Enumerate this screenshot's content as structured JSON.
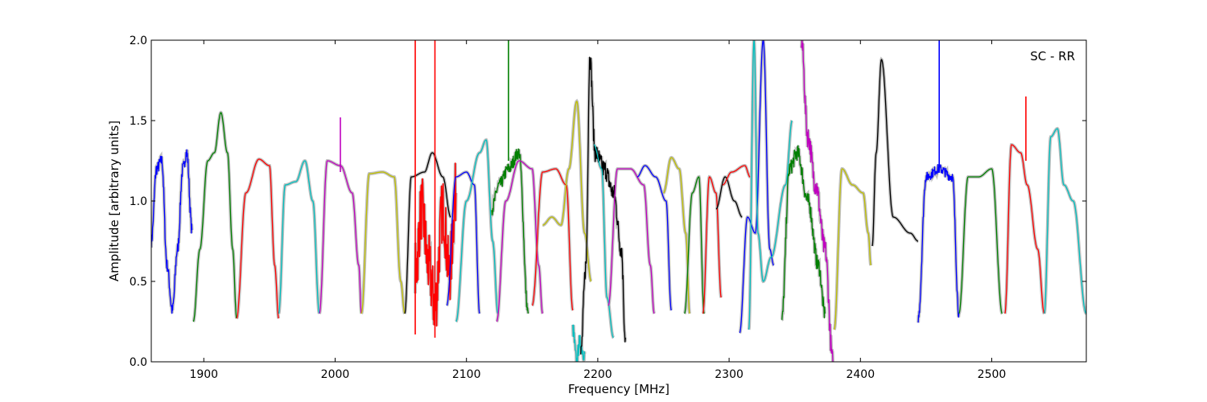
{
  "chart_data": {
    "type": "line",
    "annotation": "SC - RR",
    "xlabel": "Frequency [MHz]",
    "ylabel": "Amplitude [arbitrary units]",
    "xlim": [
      1860,
      2572
    ],
    "ylim": [
      0.0,
      2.0
    ],
    "xticks": [
      1900,
      2000,
      2100,
      2200,
      2300,
      2400,
      2500
    ],
    "yticks": [
      0.0,
      0.5,
      1.0,
      1.5,
      2.0
    ],
    "xtick_labels": [
      "1900",
      "2000",
      "2100",
      "2200",
      "2300",
      "2400",
      "2500"
    ],
    "ytick_labels": [
      "0.0",
      "0.5",
      "1.0",
      "1.5",
      "2.0"
    ],
    "grid": false,
    "colors": {
      "background": "#c0c0c0",
      "blue": "#0000ff",
      "green": "#007f00",
      "red": "#ff0000",
      "cyan": "#00bfbf",
      "magenta": "#bf00bf",
      "olive": "#bfbf00",
      "black": "#000000"
    },
    "series": [
      {
        "color": "blue",
        "x": [
          1860,
          1864,
          1868,
          1872,
          1876,
          1880,
          1884,
          1887,
          1891
        ],
        "y": [
          0.75,
          1.2,
          1.25,
          0.6,
          0.32,
          0.7,
          1.2,
          1.3,
          0.82
        ],
        "noise": 0.04
      },
      {
        "color": "green",
        "x": [
          1892,
          1897,
          1903,
          1908,
          1913,
          1918,
          1922,
          1925
        ],
        "y": [
          0.25,
          0.7,
          1.25,
          1.3,
          1.55,
          1.3,
          0.7,
          0.27
        ],
        "noise": 0.0
      },
      {
        "color": "red",
        "x": [
          1925,
          1932,
          1942,
          1950,
          1954,
          1957
        ],
        "y": [
          0.27,
          1.05,
          1.26,
          1.22,
          0.6,
          0.27
        ],
        "noise": 0.0
      },
      {
        "color": "cyan",
        "x": [
          1957,
          1962,
          1970,
          1977,
          1983,
          1988
        ],
        "y": [
          0.3,
          1.1,
          1.12,
          1.25,
          1.0,
          0.3
        ],
        "noise": 0.0
      },
      {
        "color": "magenta",
        "x": [
          1988,
          1994,
          2004,
          2013,
          2018,
          2020
        ],
        "y": [
          0.3,
          1.25,
          1.22,
          1.05,
          0.6,
          0.3
        ],
        "noise": 0.0
      },
      {
        "color": "olive",
        "x": [
          2020,
          2026,
          2036,
          2045,
          2050,
          2053
        ],
        "y": [
          0.3,
          1.17,
          1.18,
          1.15,
          0.5,
          0.3
        ],
        "noise": 0.0
      },
      {
        "color": "black",
        "x": [
          2053,
          2058,
          2068,
          2074,
          2082,
          2088
        ],
        "y": [
          0.3,
          1.15,
          1.18,
          1.3,
          1.15,
          0.9
        ],
        "noise": 0.0
      },
      {
        "color": "red",
        "x": [
          2061,
          2066,
          2071,
          2076,
          2082,
          2087,
          2092
        ],
        "y": [
          0.55,
          0.95,
          0.6,
          0.35,
          0.95,
          0.55,
          1.05
        ],
        "noise": 0.2
      },
      {
        "color": "blue",
        "x": [
          2085,
          2092,
          2100,
          2106,
          2110
        ],
        "y": [
          0.35,
          1.15,
          1.18,
          1.1,
          0.3
        ],
        "noise": 0.0
      },
      {
        "color": "cyan",
        "x": [
          2092,
          2100,
          2110,
          2115,
          2120,
          2124
        ],
        "y": [
          0.25,
          1.0,
          1.3,
          1.38,
          0.75,
          0.3
        ],
        "noise": 0.0
      },
      {
        "color": "green",
        "x": [
          2119,
          2125,
          2132,
          2140,
          2147
        ],
        "y": [
          0.95,
          1.1,
          1.2,
          1.3,
          0.3
        ],
        "noise": 0.04
      },
      {
        "color": "magenta",
        "x": [
          2123,
          2130,
          2140,
          2150,
          2155,
          2158
        ],
        "y": [
          0.25,
          1.0,
          1.25,
          1.2,
          0.6,
          0.3
        ],
        "noise": 0.0
      },
      {
        "color": "red",
        "x": [
          2150,
          2158,
          2168,
          2176,
          2181
        ],
        "y": [
          0.35,
          1.18,
          1.2,
          1.1,
          0.32
        ],
        "noise": 0.0
      },
      {
        "color": "olive",
        "x": [
          2158,
          2165,
          2172,
          2178,
          2184,
          2190,
          2195
        ],
        "y": [
          0.85,
          0.9,
          0.85,
          1.2,
          1.62,
          0.8,
          0.5
        ],
        "noise": 0.0
      },
      {
        "color": "cyan",
        "x": [
          2181,
          2184,
          2186,
          2190
        ],
        "y": [
          0.2,
          0.0,
          0.12,
          0.05
        ],
        "noise": 0.05
      },
      {
        "color": "black",
        "x": [
          2187,
          2191,
          2194,
          2198,
          2205,
          2212,
          2218,
          2221
        ],
        "y": [
          0.05,
          0.6,
          1.9,
          1.3,
          1.2,
          1.05,
          0.7,
          0.15
        ],
        "noise": 0.06
      },
      {
        "color": "cyan",
        "x": [
          2197,
          2203,
          2207,
          2212
        ],
        "y": [
          1.35,
          1.2,
          0.4,
          0.15
        ],
        "noise": 0.0
      },
      {
        "color": "magenta",
        "x": [
          2208,
          2215,
          2225,
          2235,
          2240,
          2243
        ],
        "y": [
          0.35,
          1.2,
          1.2,
          1.1,
          0.6,
          0.3
        ],
        "noise": 0.0
      },
      {
        "color": "blue",
        "x": [
          2230,
          2236,
          2244,
          2252,
          2256
        ],
        "y": [
          1.15,
          1.22,
          1.15,
          1.0,
          0.32
        ],
        "noise": 0.0
      },
      {
        "color": "olive",
        "x": [
          2250,
          2256,
          2262,
          2267,
          2270
        ],
        "y": [
          1.05,
          1.27,
          1.2,
          0.8,
          0.3
        ],
        "noise": 0.0
      },
      {
        "color": "green",
        "x": [
          2266,
          2272,
          2277,
          2281
        ],
        "y": [
          0.3,
          1.05,
          1.15,
          0.3
        ],
        "noise": 0.0
      },
      {
        "color": "red",
        "x": [
          2280,
          2285,
          2290,
          2294
        ],
        "y": [
          0.3,
          1.15,
          1.05,
          0.4
        ],
        "noise": 0.0
      },
      {
        "color": "black",
        "x": [
          2290,
          2297,
          2304,
          2310
        ],
        "y": [
          0.95,
          1.15,
          1.0,
          0.9
        ],
        "noise": 0.0
      },
      {
        "color": "red",
        "x": [
          2295,
          2302,
          2312,
          2316
        ],
        "y": [
          1.1,
          1.18,
          1.22,
          1.15
        ],
        "noise": 0.0
      },
      {
        "color": "blue",
        "x": [
          2308,
          2314,
          2320,
          2326,
          2331,
          2334
        ],
        "y": [
          0.18,
          0.9,
          0.8,
          2.0,
          0.7,
          0.6
        ],
        "noise": 0.0
      },
      {
        "color": "cyan",
        "x": [
          2315,
          2319,
          2322,
          2326,
          2332,
          2343,
          2348
        ],
        "y": [
          0.2,
          2.0,
          0.8,
          0.5,
          0.65,
          1.1,
          1.5
        ],
        "noise": 0.0
      },
      {
        "color": "green",
        "x": [
          2340,
          2346,
          2352,
          2360,
          2368,
          2373
        ],
        "y": [
          0.25,
          1.2,
          1.3,
          1.0,
          0.6,
          0.3
        ],
        "noise": 0.05
      },
      {
        "color": "magenta",
        "x": [
          2355,
          2360,
          2366,
          2373,
          2379
        ],
        "y": [
          2.0,
          1.4,
          1.1,
          0.7,
          0.0
        ],
        "noise": 0.07
      },
      {
        "color": "olive",
        "x": [
          2380,
          2386,
          2394,
          2402,
          2406,
          2408
        ],
        "y": [
          0.2,
          1.2,
          1.1,
          1.05,
          0.8,
          0.6
        ],
        "noise": 0.0
      },
      {
        "color": "black",
        "x": [
          2409,
          2412,
          2416,
          2425,
          2438,
          2444
        ],
        "y": [
          0.72,
          1.3,
          1.88,
          0.9,
          0.8,
          0.75
        ],
        "noise": 0.0
      },
      {
        "color": "blue",
        "x": [
          2444,
          2450,
          2460,
          2470,
          2475
        ],
        "y": [
          0.27,
          1.15,
          1.2,
          1.15,
          0.3
        ],
        "noise": 0.03
      },
      {
        "color": "green",
        "x": [
          2475,
          2482,
          2490,
          2500,
          2508
        ],
        "y": [
          0.3,
          1.15,
          1.15,
          1.2,
          0.3
        ],
        "noise": 0.0
      },
      {
        "color": "red",
        "x": [
          2510,
          2515,
          2522,
          2527,
          2535,
          2540
        ],
        "y": [
          0.3,
          1.35,
          1.3,
          1.1,
          0.7,
          0.3
        ],
        "noise": 0.0
      },
      {
        "color": "cyan",
        "x": [
          2540,
          2545,
          2550,
          2555,
          2562,
          2572
        ],
        "y": [
          0.3,
          1.4,
          1.45,
          1.1,
          1.0,
          0.3
        ],
        "noise": 0.0
      }
    ],
    "spikes": [
      {
        "color": "red",
        "x": 2061,
        "y0": 0.17,
        "y1": 2.0
      },
      {
        "color": "red",
        "x": 2076,
        "y0": 0.15,
        "y1": 2.0
      },
      {
        "color": "magenta",
        "x": 2004,
        "y0": 1.18,
        "y1": 1.52
      },
      {
        "color": "green",
        "x": 2132,
        "y0": 1.25,
        "y1": 2.0
      },
      {
        "color": "blue",
        "x": 2460,
        "y0": 1.2,
        "y1": 2.0
      },
      {
        "color": "red",
        "x": 2526,
        "y0": 1.25,
        "y1": 1.65
      }
    ]
  }
}
